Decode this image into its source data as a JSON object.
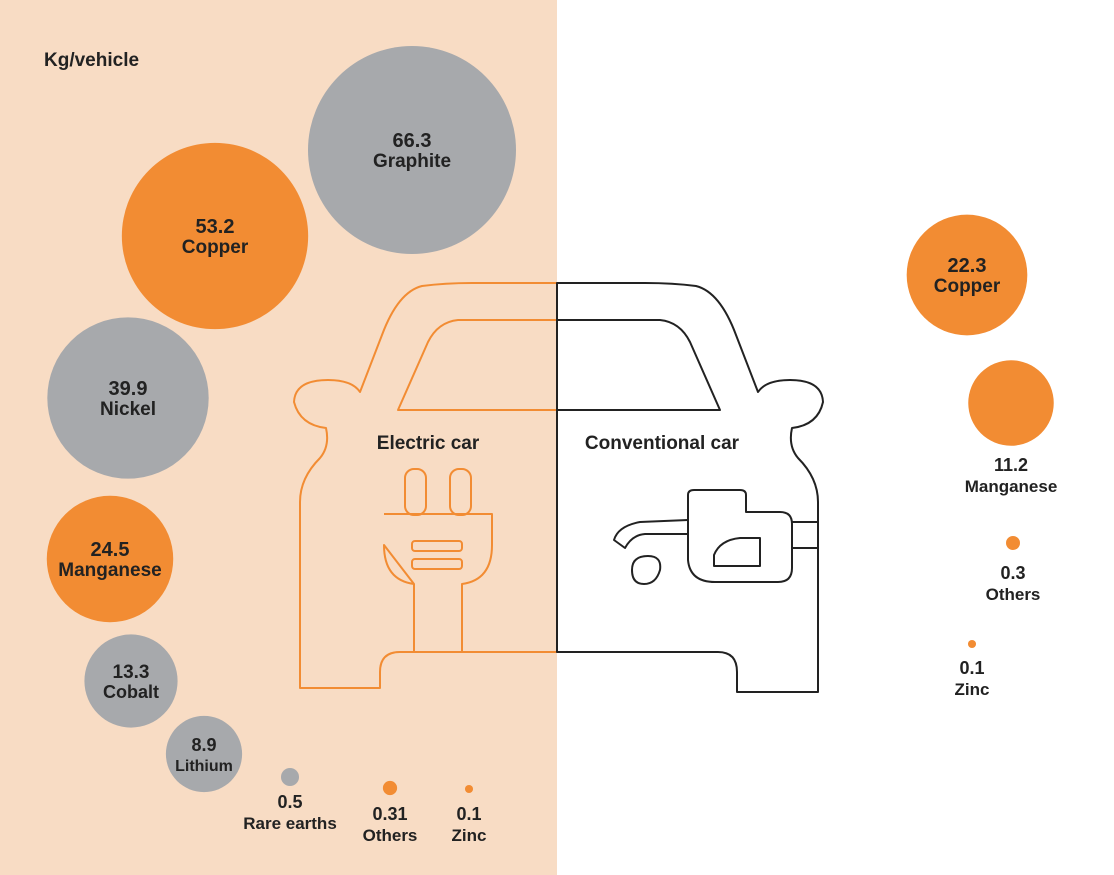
{
  "chart_data": {
    "type": "bubble",
    "unit_label": "Kg/vehicle",
    "colors": {
      "orange": "#f28c33",
      "grey": "#a7a9ac",
      "panel": "#f8dcc4",
      "text": "#222222"
    },
    "electric_car": {
      "label": "Electric car",
      "minerals": [
        {
          "name": "Graphite",
          "value": 66.3,
          "color": "grey"
        },
        {
          "name": "Copper",
          "value": 53.2,
          "color": "orange"
        },
        {
          "name": "Nickel",
          "value": 39.9,
          "color": "grey"
        },
        {
          "name": "Manganese",
          "value": 24.5,
          "color": "orange"
        },
        {
          "name": "Cobalt",
          "value": 13.3,
          "color": "grey"
        },
        {
          "name": "Lithium",
          "value": 8.9,
          "color": "grey"
        },
        {
          "name": "Rare earths",
          "value": 0.5,
          "color": "grey"
        },
        {
          "name": "Others",
          "value": 0.31,
          "color": "orange"
        },
        {
          "name": "Zinc",
          "value": 0.1,
          "color": "orange"
        }
      ]
    },
    "conventional_car": {
      "label": "Conventional car",
      "minerals": [
        {
          "name": "Copper",
          "value": 22.3,
          "color": "orange"
        },
        {
          "name": "Manganese",
          "value": 11.2,
          "color": "orange"
        },
        {
          "name": "Others",
          "value": 0.3,
          "color": "orange"
        },
        {
          "name": "Zinc",
          "value": 0.1,
          "color": "orange"
        }
      ]
    }
  }
}
